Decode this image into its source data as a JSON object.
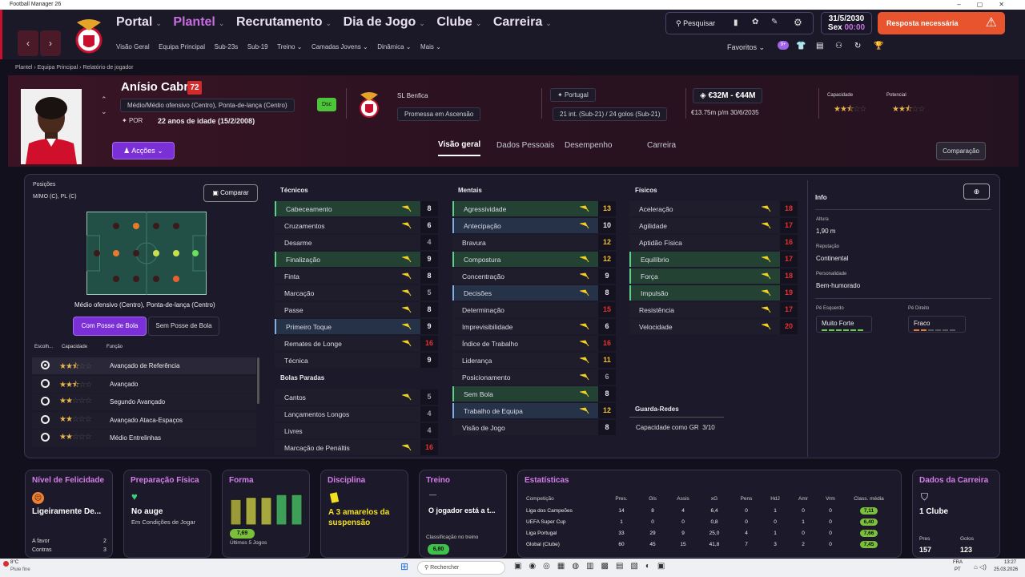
{
  "window": {
    "title": "Football Manager 26"
  },
  "nav": {
    "main": [
      "Portal",
      "Plantel",
      "Recrutamento",
      "Dia de Jogo",
      "Clube",
      "Carreira"
    ],
    "active": "Plantel",
    "sub": [
      "Visão Geral",
      "Equipa Principal",
      "Sub-23s",
      "Sub-19",
      "Treino ⌄",
      "Camadas Jovens ⌄",
      "Dinâmica ⌄",
      "Mais ⌄"
    ],
    "search": "Pesquisar",
    "date": "31/5/2030",
    "day": "Sex",
    "time": "00:00",
    "alert": "Resposta necessária",
    "favorites": "Favoritos",
    "badge": "9+"
  },
  "breadcrumb": [
    "Plantel",
    "Equipa Principal",
    "Relatório de jogador"
  ],
  "player": {
    "name": "Anísio Cabral",
    "rating": "72",
    "position": "Médio/Médio ofensivo (Centro), Ponta-de-lança (Centro)",
    "nation": "POR",
    "age": "22 anos de idade (15/2/2008)",
    "status": "Dsc",
    "club": "SL Benfica",
    "club_role": "Promessa em Ascensão",
    "country": "Portugal",
    "caps": "21 int. (Sub-21) / 24 golos (Sub-21)",
    "value": "€32M - €44M",
    "wage": "€13.75m p/m",
    "contract": "30/6/2035",
    "capacity_label": "Capacidade",
    "potential_label": "Potencial",
    "actions": "Acções"
  },
  "tabs": [
    "Visão geral",
    "Dados Pessoais",
    "Desempenho",
    "Carreira"
  ],
  "compare_label": "Comparação",
  "positions": {
    "label": "Posições",
    "value": "M/MO (C), PL (C)",
    "compare": "Comparar",
    "desc": "Médio ofensivo (Centro), Ponta-de-lança (Centro)",
    "with_ball": "Com Posse de Bola",
    "without_ball": "Sem Posse de Bola",
    "cols": [
      "Escolh...",
      "Capacidade",
      "Função"
    ],
    "roles": [
      {
        "name": "Avançado de Referência",
        "stars": 2.5,
        "selected": true
      },
      {
        "name": "Avançado",
        "stars": 2.5,
        "selected": false
      },
      {
        "name": "Segundo Avançado",
        "stars": 2,
        "selected": false
      },
      {
        "name": "Avançado Ataca-Espaços",
        "stars": 2,
        "selected": false
      },
      {
        "name": "Médio Entrelinhas",
        "stars": 2,
        "selected": false
      }
    ]
  },
  "technical": {
    "title": "Técnicos",
    "items": [
      {
        "n": "Cabeceamento",
        "v": "8",
        "c": "w",
        "h": "hl",
        "a": "y"
      },
      {
        "n": "Cruzamentos",
        "v": "6",
        "c": "w",
        "h": "",
        "a": "y"
      },
      {
        "n": "Desarme",
        "v": "4",
        "c": "g",
        "h": "",
        "a": ""
      },
      {
        "n": "Finalização",
        "v": "9",
        "c": "w",
        "h": "hl",
        "a": "y"
      },
      {
        "n": "Finta",
        "v": "8",
        "c": "w",
        "h": "",
        "a": "y"
      },
      {
        "n": "Marcação",
        "v": "5",
        "c": "g",
        "h": "",
        "a": "y"
      },
      {
        "n": "Passe",
        "v": "8",
        "c": "w",
        "h": "",
        "a": "y"
      },
      {
        "n": "Primeiro Toque",
        "v": "9",
        "c": "w",
        "h": "hb",
        "a": "y"
      },
      {
        "n": "Remates de Longe",
        "v": "16",
        "c": "r",
        "h": "",
        "a": "y"
      },
      {
        "n": "Técnica",
        "v": "9",
        "c": "w",
        "h": "",
        "a": ""
      }
    ]
  },
  "setpieces": {
    "title": "Bolas Paradas",
    "items": [
      {
        "n": "Cantos",
        "v": "5",
        "c": "g",
        "h": "",
        "a": "y"
      },
      {
        "n": "Lançamentos Longos",
        "v": "4",
        "c": "g",
        "h": "",
        "a": ""
      },
      {
        "n": "Livres",
        "v": "4",
        "c": "g",
        "h": "",
        "a": ""
      },
      {
        "n": "Marcação de Penáltis",
        "v": "16",
        "c": "r",
        "h": "",
        "a": "y"
      }
    ]
  },
  "mental": {
    "title": "Mentais",
    "items": [
      {
        "n": "Agressividade",
        "v": "13",
        "c": "y",
        "h": "hl",
        "a": "y"
      },
      {
        "n": "Antecipação",
        "v": "10",
        "c": "w",
        "h": "hb",
        "a": "y"
      },
      {
        "n": "Bravura",
        "v": "12",
        "c": "y",
        "h": "",
        "a": ""
      },
      {
        "n": "Compostura",
        "v": "12",
        "c": "y",
        "h": "hl",
        "a": "y"
      },
      {
        "n": "Concentração",
        "v": "9",
        "c": "w",
        "h": "",
        "a": "y"
      },
      {
        "n": "Decisões",
        "v": "8",
        "c": "w",
        "h": "hb",
        "a": "y"
      },
      {
        "n": "Determinação",
        "v": "15",
        "c": "r",
        "h": "",
        "a": ""
      },
      {
        "n": "Imprevisibilidade",
        "v": "6",
        "c": "w",
        "h": "",
        "a": "y"
      },
      {
        "n": "Índice de Trabalho",
        "v": "16",
        "c": "r",
        "h": "",
        "a": "y"
      },
      {
        "n": "Liderança",
        "v": "11",
        "c": "y",
        "h": "",
        "a": "y"
      },
      {
        "n": "Posicionamento",
        "v": "6",
        "c": "g",
        "h": "",
        "a": "y"
      },
      {
        "n": "Sem Bola",
        "v": "8",
        "c": "w",
        "h": "hl",
        "a": "y"
      },
      {
        "n": "Trabalho de Equipa",
        "v": "12",
        "c": "y",
        "h": "hb",
        "a": "y"
      },
      {
        "n": "Visão de Jogo",
        "v": "8",
        "c": "w",
        "h": "",
        "a": ""
      }
    ]
  },
  "physical": {
    "title": "Físicos",
    "items": [
      {
        "n": "Aceleração",
        "v": "18",
        "c": "r",
        "h": "",
        "a": "y"
      },
      {
        "n": "Agilidade",
        "v": "17",
        "c": "r",
        "h": "",
        "a": "y"
      },
      {
        "n": "Aptidão Física",
        "v": "16",
        "c": "r",
        "h": "",
        "a": ""
      },
      {
        "n": "Equilíbrio",
        "v": "17",
        "c": "r",
        "h": "hl",
        "a": "y"
      },
      {
        "n": "Força",
        "v": "18",
        "c": "r",
        "h": "hl",
        "a": "y"
      },
      {
        "n": "Impulsão",
        "v": "19",
        "c": "r",
        "h": "hl",
        "a": "y"
      },
      {
        "n": "Resistência",
        "v": "17",
        "c": "r",
        "h": "",
        "a": "y"
      },
      {
        "n": "Velocidade",
        "v": "20",
        "c": "r",
        "h": "",
        "a": "y"
      }
    ]
  },
  "goalkeeping": {
    "title": "Guarda-Redes",
    "label": "Capacidade como GR",
    "value": "3/10"
  },
  "info": {
    "title": "Info",
    "height_label": "Altura",
    "height": "1,90 m",
    "rep_label": "Reputação",
    "rep": "Continental",
    "pers_label": "Personalidade",
    "pers": "Bem-humorado",
    "left_label": "Pé Esquerdo",
    "left": "Muito Forte",
    "right_label": "Pé Direito",
    "right": "Fraco"
  },
  "cards": {
    "happiness": {
      "title": "Nível de Felicidade",
      "value": "Ligeiramente De...",
      "r1": "A favor",
      "r1v": "2",
      "r2": "Contras",
      "r2v": "3"
    },
    "fitness": {
      "title": "Preparação Física",
      "value": "No auge",
      "sub": "Em Condições de Jogar"
    },
    "form": {
      "title": "Forma",
      "value": "7,69",
      "sub": "Últimos 5 Jogos",
      "bars": [
        0.72,
        0.78,
        0.78,
        0.86,
        0.86
      ]
    },
    "discipline": {
      "title": "Disciplina",
      "value": "A 3 amarelos da suspensão"
    },
    "training": {
      "title": "Treino",
      "dash": "—",
      "value": "O jogador está a t...",
      "sub": "Classificação no treino",
      "rating": "6,80"
    },
    "stats": {
      "title": "Estatísticas",
      "cols": [
        "Competição",
        "Pres.",
        "Gls",
        "Assis",
        "xG",
        "Pens",
        "HdJ",
        "Amr",
        "Vrm",
        "Class. média"
      ],
      "rows": [
        [
          "Liga dos Campeões",
          "14",
          "8",
          "4",
          "6,4",
          "0",
          "1",
          "0",
          "0",
          "7,11"
        ],
        [
          "UEFA Super Cup",
          "1",
          "0",
          "0",
          "0,8",
          "0",
          "0",
          "1",
          "0",
          "6,40"
        ],
        [
          "Liga Portugal",
          "33",
          "29",
          "9",
          "25,0",
          "4",
          "1",
          "0",
          "0",
          "7,66"
        ],
        [
          "Global (Clube)",
          "60",
          "45",
          "15",
          "41,8",
          "7",
          "3",
          "2",
          "0",
          "7,45"
        ]
      ]
    },
    "career": {
      "title": "Dados da Carreira",
      "value": "1 Clube",
      "l1": "Pres",
      "v1": "157",
      "l2": "Golos",
      "v2": "123"
    }
  },
  "taskbar": {
    "temp": "8°C",
    "weather": "Pluie fine",
    "search": "Rechercher",
    "lang1": "FRA",
    "lang2": "PT",
    "time": "13:27",
    "date": "25.03.2026"
  }
}
